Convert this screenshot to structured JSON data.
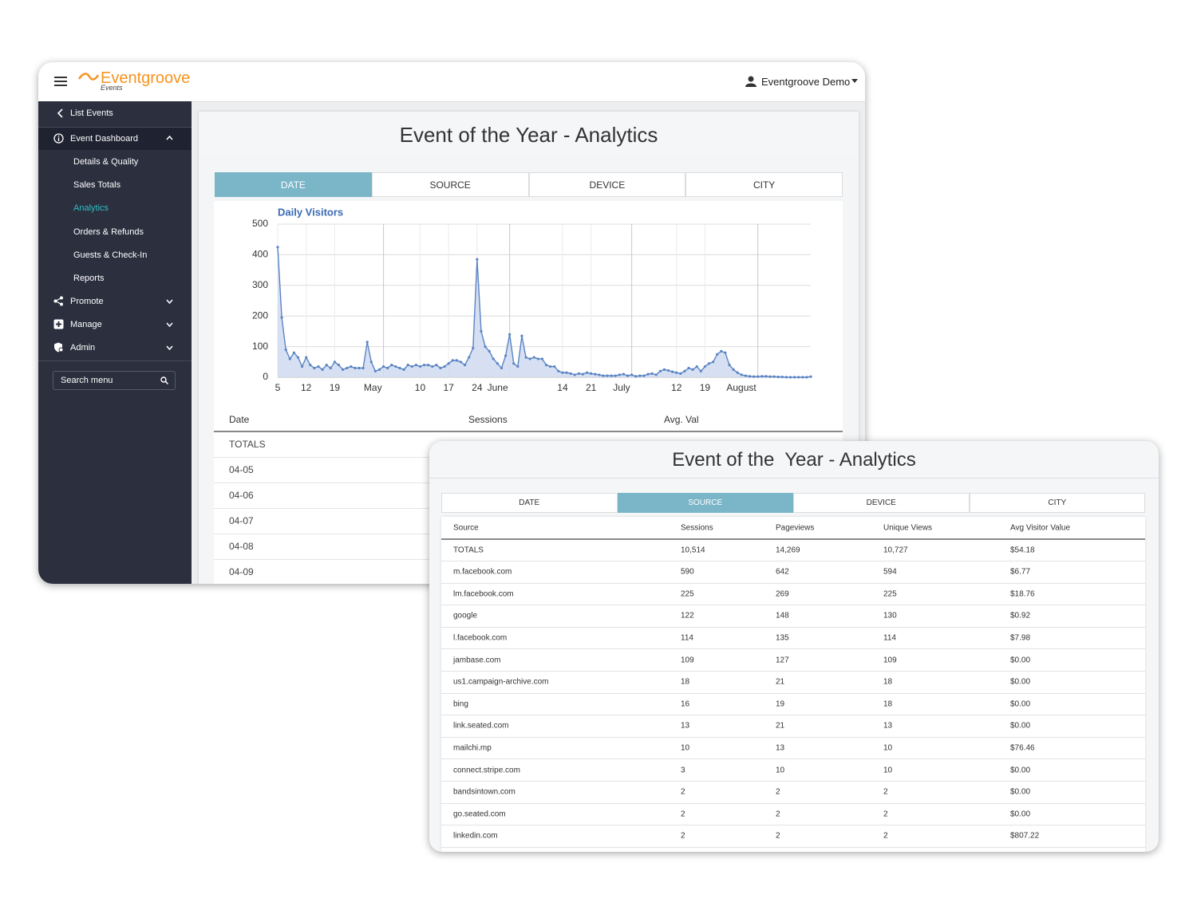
{
  "header": {
    "logo": "Eventgroove",
    "logo_tagline": "Events",
    "user": "Eventgroove Demo"
  },
  "sidebar": {
    "back": "List Events",
    "sections": [
      {
        "label": "Event Dashboard",
        "items": [
          "Details & Quality",
          "Sales Totals",
          "Analytics",
          "Orders & Refunds",
          "Guests & Check-In",
          "Reports"
        ]
      },
      {
        "label": "Promote"
      },
      {
        "label": "Manage"
      },
      {
        "label": "Admin"
      }
    ],
    "active_item": 2,
    "search": "Search menu"
  },
  "main": {
    "title": "Event of the Year - Analytics",
    "tabs": [
      "DATE",
      "SOURCE",
      "DEVICE",
      "CITY"
    ],
    "active_tab": 0,
    "table": {
      "columns": [
        "Date",
        "Sessions",
        "Avg. Val"
      ],
      "rows": [
        "TOTALS",
        "04-05",
        "04-06",
        "04-07",
        "04-08",
        "04-09"
      ]
    }
  },
  "chart_data": {
    "type": "line",
    "title": "Daily Visitors",
    "color": "#5b84c4",
    "fill": "#cfdaf0",
    "grid": true,
    "categories": [
      "5",
      null,
      null,
      null,
      null,
      null,
      null,
      "12",
      null,
      null,
      null,
      null,
      null,
      null,
      "19",
      null,
      null,
      null,
      null,
      null,
      null,
      null,
      null,
      null,
      null,
      null,
      "May",
      null,
      null,
      null,
      null,
      null,
      null,
      null,
      null,
      "10",
      null,
      null,
      null,
      null,
      null,
      null,
      "17",
      null,
      null,
      null,
      null,
      null,
      null,
      "24",
      null,
      null,
      null,
      null,
      null,
      null,
      null,
      "June",
      null,
      null,
      null,
      null,
      null,
      null,
      null,
      null,
      null,
      null,
      null,
      null,
      "14",
      null,
      null,
      null,
      null,
      null,
      null,
      "21",
      null,
      null,
      null,
      null,
      null,
      null,
      null,
      null,
      null,
      "July",
      null,
      null,
      null,
      null,
      null,
      null,
      null,
      null,
      null,
      null,
      "12",
      null,
      null,
      null,
      null,
      null,
      null,
      "19",
      null,
      null,
      null,
      null,
      null,
      null,
      null,
      null,
      null,
      null,
      null,
      null,
      "August",
      null,
      null,
      null,
      null,
      null,
      null,
      null,
      null,
      null,
      null,
      null,
      null,
      null
    ],
    "values": [
      425,
      195,
      90,
      60,
      80,
      65,
      35,
      65,
      40,
      30,
      35,
      25,
      40,
      30,
      50,
      40,
      25,
      30,
      35,
      30,
      30,
      30,
      115,
      50,
      20,
      25,
      35,
      30,
      40,
      35,
      30,
      25,
      40,
      35,
      40,
      35,
      40,
      40,
      35,
      40,
      30,
      35,
      45,
      55,
      55,
      50,
      40,
      65,
      95,
      385,
      150,
      100,
      85,
      60,
      45,
      30,
      70,
      140,
      45,
      35,
      135,
      65,
      60,
      65,
      60,
      60,
      40,
      35,
      35,
      20,
      15,
      15,
      12,
      8,
      12,
      10,
      15,
      12,
      10,
      8,
      5,
      5,
      5,
      5,
      8,
      10,
      5,
      8,
      3,
      5,
      5,
      10,
      12,
      8,
      20,
      25,
      22,
      18,
      15,
      12,
      20,
      30,
      25,
      35,
      20,
      35,
      45,
      50,
      75,
      85,
      80,
      40,
      25,
      15,
      8,
      5,
      3,
      2,
      2,
      3,
      3,
      2,
      2,
      1,
      1,
      0,
      0,
      0,
      0,
      0,
      0,
      2
    ],
    "ylim": [
      0,
      500
    ],
    "yticks": [
      0,
      100,
      200,
      300,
      400,
      500
    ]
  },
  "front": {
    "title": "Event of the  Year - Analytics",
    "tabs": [
      "DATE",
      "SOURCE",
      "DEVICE",
      "CITY"
    ],
    "active_tab": 1,
    "table": {
      "columns": [
        "Source",
        "Sessions",
        "Pageviews",
        "Unique Views",
        "Avg Visitor Value"
      ],
      "rows": [
        [
          "TOTALS",
          "10,514",
          "14,269",
          "10,727",
          "$54.18"
        ],
        [
          "m.facebook.com",
          "590",
          "642",
          "594",
          "$6.77"
        ],
        [
          "lm.facebook.com",
          "225",
          "269",
          "225",
          "$18.76"
        ],
        [
          "google",
          "122",
          "148",
          "130",
          "$0.92"
        ],
        [
          "l.facebook.com",
          "114",
          "135",
          "114",
          "$7.98"
        ],
        [
          "jambase.com",
          "109",
          "127",
          "109",
          "$0.00"
        ],
        [
          "us1.campaign-archive.com",
          "18",
          "21",
          "18",
          "$0.00"
        ],
        [
          "bing",
          "16",
          "19",
          "18",
          "$0.00"
        ],
        [
          "link.seated.com",
          "13",
          "21",
          "13",
          "$0.00"
        ],
        [
          "mailchi.mp",
          "10",
          "13",
          "10",
          "$76.46"
        ],
        [
          "connect.stripe.com",
          "3",
          "10",
          "10",
          "$0.00"
        ],
        [
          "bandsintown.com",
          "2",
          "2",
          "2",
          "$0.00"
        ],
        [
          "go.seated.com",
          "2",
          "2",
          "2",
          "$0.00"
        ],
        [
          "linkedin.com",
          "2",
          "2",
          "2",
          "$807.22"
        ]
      ]
    }
  }
}
